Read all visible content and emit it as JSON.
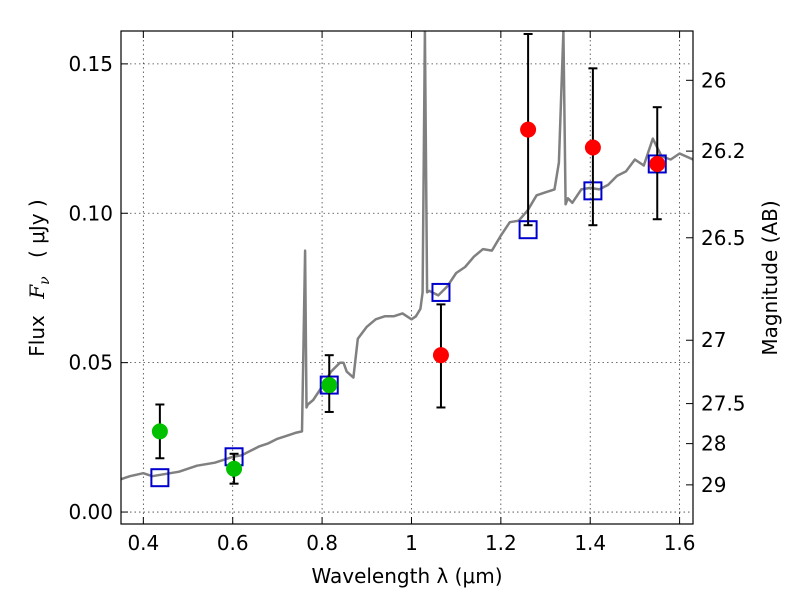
{
  "chart_data": {
    "type": "scatter",
    "xlabel": "Wavelength  λ (μm)",
    "ylabel_prefix": "Flux",
    "ylabel_symbol_main": "F",
    "ylabel_symbol_sub": "ν",
    "ylabel_unit": "( μJy )",
    "y2label": "Magnitude (AB)",
    "xlim": [
      0.35,
      1.63
    ],
    "ylim": [
      -0.004,
      0.161
    ],
    "grid": true,
    "x_ticks": [
      {
        "value": 0.4,
        "label": "0.4"
      },
      {
        "value": 0.6,
        "label": "0.6"
      },
      {
        "value": 0.8,
        "label": "0.8"
      },
      {
        "value": 1.0,
        "label": "1"
      },
      {
        "value": 1.2,
        "label": "1.2"
      },
      {
        "value": 1.4,
        "label": "1.4"
      },
      {
        "value": 1.6,
        "label": "1.6"
      }
    ],
    "y_ticks": [
      {
        "value": 0.0,
        "label": "0.00"
      },
      {
        "value": 0.05,
        "label": "0.05"
      },
      {
        "value": 0.1,
        "label": "0.10"
      },
      {
        "value": 0.15,
        "label": "0.15"
      }
    ],
    "y2_ticks": [
      {
        "flux": 0.1445,
        "label": "26"
      },
      {
        "flux": 0.1208,
        "label": "26.2"
      },
      {
        "flux": 0.0918,
        "label": "26.5"
      },
      {
        "flux": 0.0575,
        "label": "27"
      },
      {
        "flux": 0.0363,
        "label": "27.5"
      },
      {
        "flux": 0.0229,
        "label": "28"
      },
      {
        "flux": 0.0091,
        "label": "29"
      }
    ],
    "series": [
      {
        "marker": "line",
        "color": "#808080",
        "x": [
          0.35,
          0.37,
          0.4,
          0.42,
          0.44,
          0.46,
          0.48,
          0.5,
          0.52,
          0.54,
          0.56,
          0.58,
          0.6,
          0.62,
          0.64,
          0.66,
          0.68,
          0.7,
          0.72,
          0.74,
          0.755,
          0.762,
          0.765,
          0.768,
          0.78,
          0.8,
          0.82,
          0.84,
          0.848,
          0.855,
          0.87,
          0.88,
          0.9,
          0.92,
          0.94,
          0.96,
          0.98,
          1.0,
          1.01,
          1.02,
          1.025,
          1.03,
          1.035,
          1.04,
          1.06,
          1.08,
          1.1,
          1.12,
          1.14,
          1.16,
          1.18,
          1.2,
          1.22,
          1.24,
          1.26,
          1.28,
          1.3,
          1.32,
          1.33,
          1.34,
          1.345,
          1.35,
          1.36,
          1.38,
          1.4,
          1.42,
          1.44,
          1.46,
          1.48,
          1.5,
          1.52,
          1.54,
          1.56,
          1.58,
          1.6,
          1.63
        ],
        "y": [
          0.011,
          0.012,
          0.013,
          0.012,
          0.0125,
          0.013,
          0.0135,
          0.0145,
          0.0155,
          0.016,
          0.0165,
          0.0175,
          0.0185,
          0.019,
          0.0205,
          0.022,
          0.023,
          0.0245,
          0.0255,
          0.0265,
          0.027,
          0.0875,
          0.035,
          0.036,
          0.0375,
          0.042,
          0.047,
          0.05,
          0.05,
          0.047,
          0.045,
          0.058,
          0.062,
          0.0645,
          0.0655,
          0.0655,
          0.0665,
          0.0645,
          0.0655,
          0.068,
          0.0735,
          0.161,
          0.0735,
          0.074,
          0.0725,
          0.0755,
          0.08,
          0.082,
          0.0855,
          0.088,
          0.0875,
          0.0925,
          0.097,
          0.0975,
          0.101,
          0.106,
          0.107,
          0.108,
          0.117,
          0.161,
          0.103,
          0.105,
          0.1035,
          0.108,
          0.1085,
          0.108,
          0.1095,
          0.1125,
          0.114,
          0.118,
          0.116,
          0.125,
          0.119,
          0.118,
          0.12,
          0.118
        ]
      },
      {
        "marker": "square",
        "color": "#0000cc",
        "x": [
          0.437,
          0.603,
          0.816,
          1.066,
          1.261,
          1.406,
          1.55
        ],
        "y": [
          0.0115,
          0.0185,
          0.0425,
          0.0735,
          0.0945,
          0.1075,
          0.1165
        ]
      },
      {
        "marker": "circle",
        "color": "#00c000",
        "x": [
          0.437,
          0.603,
          0.816
        ],
        "y": [
          0.027,
          0.0145,
          0.0425
        ],
        "yerr_low": [
          0.018,
          0.0095,
          0.0335
        ],
        "yerr_high": [
          0.036,
          0.0195,
          0.0525
        ]
      },
      {
        "marker": "circle",
        "color": "#ff0000",
        "x": [
          1.066,
          1.261,
          1.406,
          1.55
        ],
        "y": [
          0.0525,
          0.128,
          0.122,
          0.1165
        ],
        "yerr_low": [
          0.035,
          0.096,
          0.096,
          0.098
        ],
        "yerr_high": [
          0.0695,
          0.16,
          0.1485,
          0.1355
        ]
      }
    ]
  }
}
